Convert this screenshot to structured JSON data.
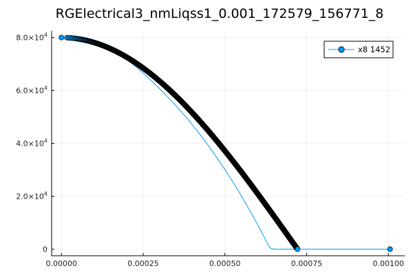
{
  "chart_data": {
    "type": "scatter",
    "title": "RGElectrical3_nmLiqss1_0.001_172579_156771_8",
    "xlabel": "",
    "ylabel": "",
    "xlim": [
      -3e-05,
      0.00105
    ],
    "ylim": [
      -2500,
      82500
    ],
    "grid": true,
    "legend_position": "top-right",
    "series_color": "#009AFA",
    "x_ticks": [
      {
        "value": 0,
        "label": "0.00000"
      },
      {
        "value": 0.00025,
        "label": "0.00025"
      },
      {
        "value": 0.0005,
        "label": "0.00050"
      },
      {
        "value": 0.00075,
        "label": "0.00075"
      },
      {
        "value": 0.001,
        "label": "0.00100"
      }
    ],
    "y_ticks": [
      {
        "value": 0,
        "mantissa": "0",
        "exponent": ""
      },
      {
        "value": 20000,
        "mantissa": "2.0×10",
        "exponent": "4"
      },
      {
        "value": 40000,
        "mantissa": "4.0×10",
        "exponent": "4"
      },
      {
        "value": 60000,
        "mantissa": "6.0×10",
        "exponent": "4"
      },
      {
        "value": 80000,
        "mantissa": "8.0×10",
        "exponent": "4"
      }
    ],
    "series": [
      {
        "name": "x8 1452",
        "shape": "quarter-cosine",
        "x": [
          0,
          6.25e-05,
          8.839e-05,
          0.00010825,
          0.000125,
          0.00013975,
          0.00015309,
          0.00016536,
          0.00017678,
          0.0001875,
          0.00019764,
          0.00020729,
          0.00021651,
          0.00022535,
          0.00023385,
          0.00024206,
          0.00025,
          0.00027951,
          0.00030619,
          0.00033072,
          0.00035355,
          0.000375,
          0.00039528,
          0.00041458,
          0.00043301,
          0.00045069,
          0.0004677,
          0.00048412,
          0.0005,
          0.00051539,
          0.00053033,
          0.00054486,
          0.000559,
          0.00057282,
          0.0005863,
          0.00059948,
          0.00061237,
          0.000625,
          0.00063738,
          0.00064952,
          0.00066144,
          0.00067315,
          0.00068465,
          0.00069597,
          0.0007071,
          0.00071806,
          0.000722,
          0.001005
        ],
        "y": [
          80000,
          79175,
          78381,
          77599,
          76802,
          75996,
          75177,
          74351,
          73513,
          72668,
          71815,
          70954,
          70082,
          69210,
          68333,
          67446,
          66549,
          63155,
          59954,
          56852,
          53801,
          50781,
          47790,
          44823,
          41859,
          38910,
          35951,
          33023,
          30068,
          27122,
          24175,
          21212,
          18274,
          15287,
          12347,
          9326,
          6427,
          3336,
          460,
          0,
          0,
          0,
          0,
          0,
          0,
          0,
          0,
          0
        ]
      }
    ]
  }
}
